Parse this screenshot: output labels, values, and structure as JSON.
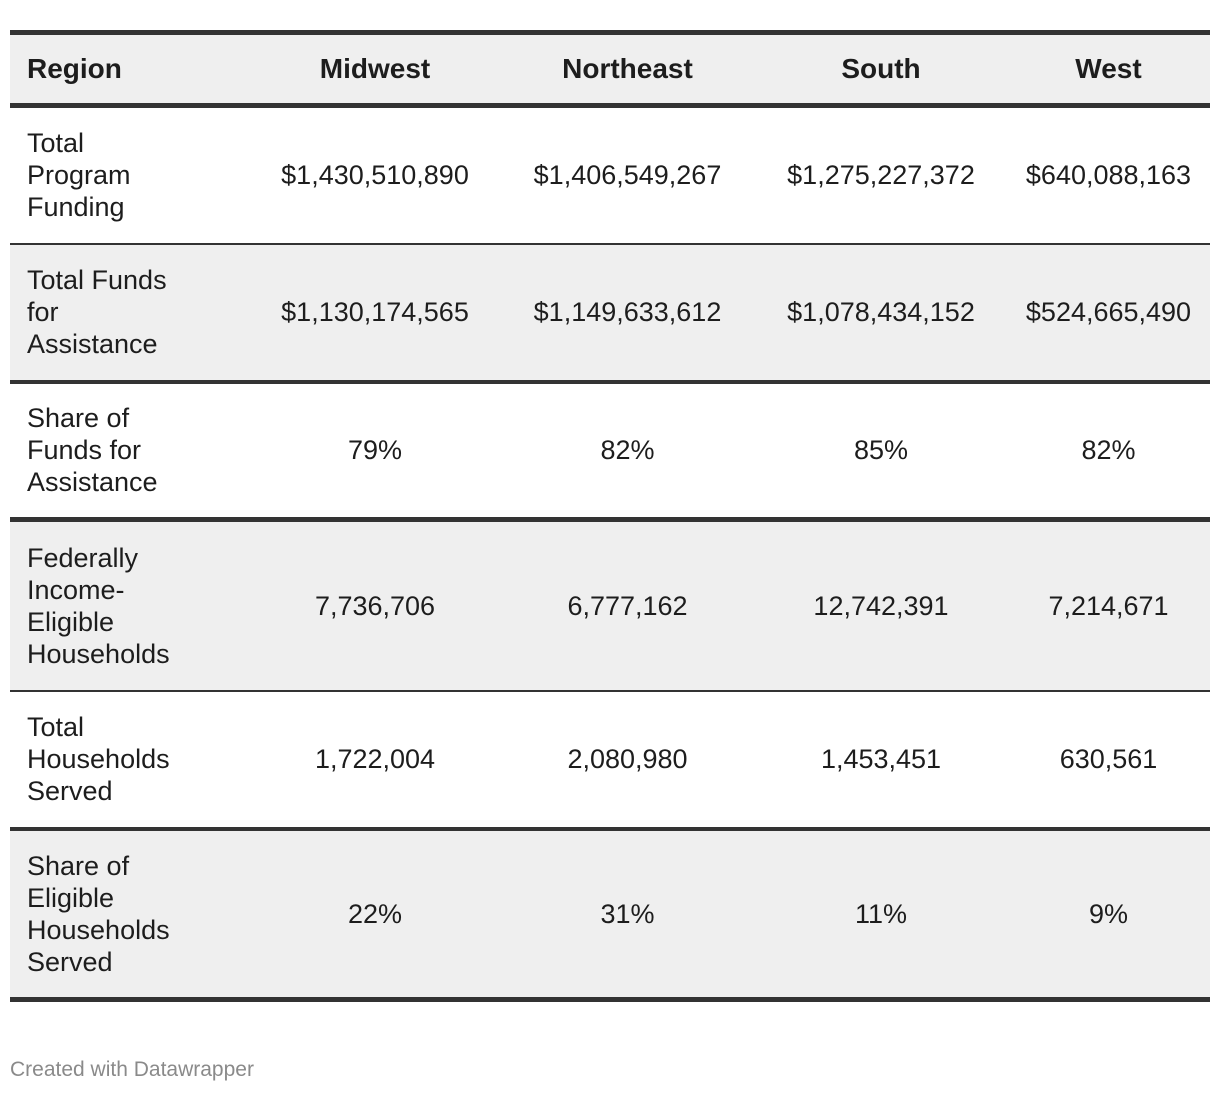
{
  "chart_data": {
    "type": "table",
    "columns": [
      "Region",
      "Midwest",
      "Northeast",
      "South",
      "West"
    ],
    "rows": [
      {
        "label": "Total Program Funding",
        "values": [
          "$1,430,510,890",
          "$1,406,549,267",
          "$1,275,227,372",
          "$640,088,163"
        ]
      },
      {
        "label": "Total Funds for Assistance",
        "values": [
          "$1,130,174,565",
          "$1,149,633,612",
          "$1,078,434,152",
          "$524,665,490"
        ]
      },
      {
        "label": "Share of Funds for Assistance",
        "values": [
          "79%",
          "82%",
          "85%",
          "82%"
        ]
      },
      {
        "label": "Federally Income-Eligible Households",
        "values": [
          "7,736,706",
          "6,777,162",
          "12,742,391",
          "7,214,671"
        ]
      },
      {
        "label": "Total Households Served",
        "values": [
          "1,722,004",
          "2,080,980",
          "1,453,451",
          "630,561"
        ]
      },
      {
        "label": "Share of Eligible Households Served",
        "values": [
          "22%",
          "31%",
          "11%",
          "9%"
        ]
      }
    ]
  },
  "footer": {
    "credit": "Created with Datawrapper"
  },
  "colors": {
    "header_background": "#efefef",
    "shaded_row": "#efefef",
    "rule": "#333333",
    "text": "#1d1d1d",
    "credit_text": "#8a8a8a"
  }
}
